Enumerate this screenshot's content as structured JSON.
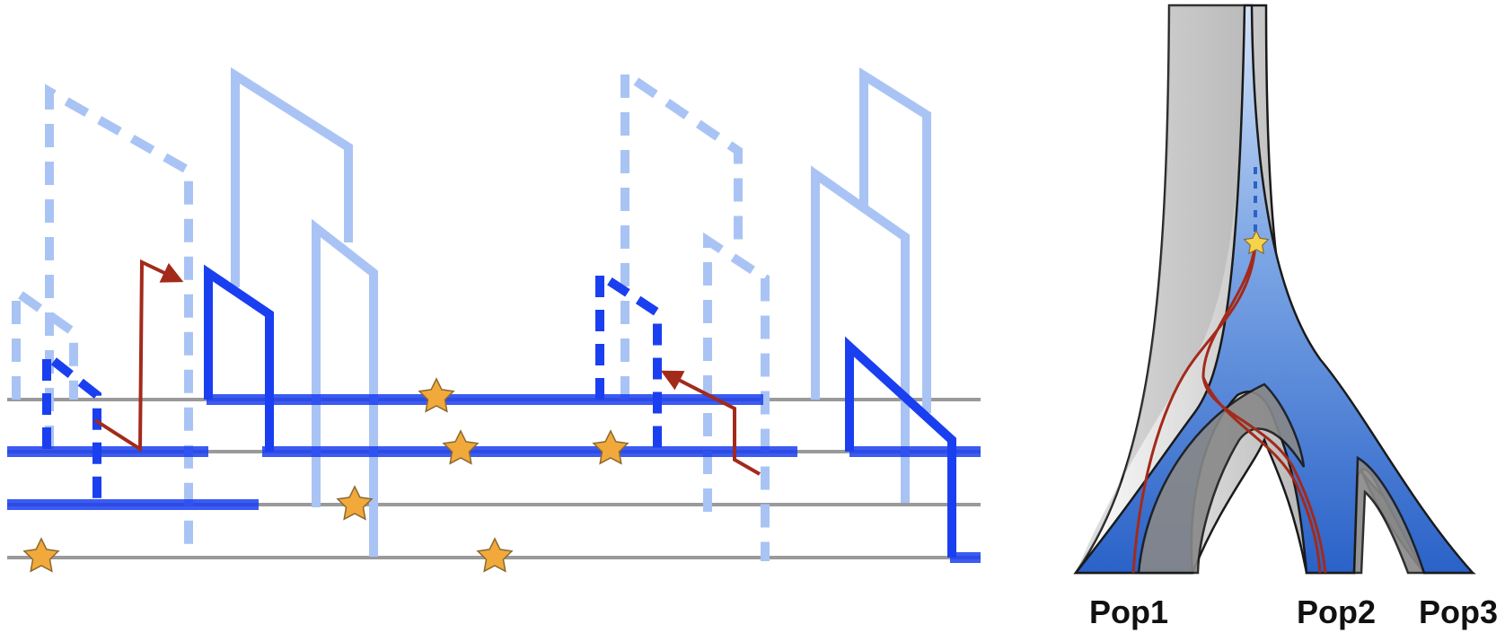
{
  "figure": {
    "colors": {
      "line_gray": "#9a9a9a",
      "strong_blue": "#1a3ff0",
      "light_blue": "#a9c4f4",
      "migration_red": "#a32a1b",
      "star_orange": "#f2a93b",
      "star_yellow": "#f6d34a"
    },
    "left_panel": {
      "description_icons": {
        "mutation_marker": "star-icon",
        "migration_marker": "arrow-icon"
      }
    },
    "right_panel": {
      "populations": [
        {
          "label": "Pop1"
        },
        {
          "label": "Pop2"
        },
        {
          "label": "Pop3"
        }
      ]
    }
  }
}
